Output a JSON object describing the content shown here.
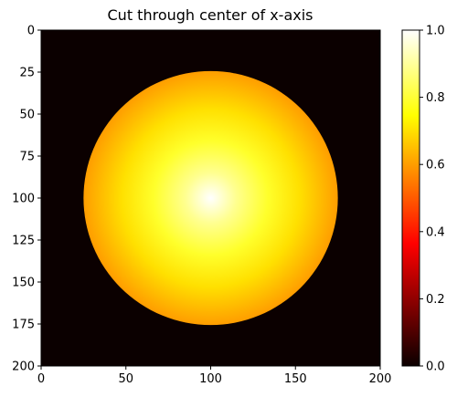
{
  "chart_data": {
    "type": "heatmap",
    "title": "Cut through center of x-axis",
    "xlabel": "",
    "ylabel": "",
    "colormap": "hot",
    "grid": false,
    "image_shape": [
      201,
      201
    ],
    "xlim": [
      0,
      200
    ],
    "ylim": [
      200,
      0
    ],
    "y_axis_inverted": true,
    "x_ticks": [
      0,
      50,
      100,
      150,
      200
    ],
    "x_tick_labels": [
      "0",
      "50",
      "100",
      "150",
      "200"
    ],
    "y_ticks": [
      0,
      25,
      50,
      75,
      100,
      125,
      150,
      175,
      200
    ],
    "y_tick_labels": [
      "0",
      "25",
      "50",
      "75",
      "100",
      "125",
      "150",
      "175",
      "200"
    ],
    "circle": {
      "center": [
        100,
        100
      ],
      "radius": 75,
      "value_at_center": 1.0,
      "value_at_edge": 0.6,
      "profile": "radial falloff from center to edge"
    },
    "background_value": 0.0,
    "colorbar": {
      "range": [
        0.0,
        1.0
      ],
      "ticks": [
        0.0,
        0.2,
        0.4,
        0.6,
        0.8,
        1.0
      ],
      "tick_labels": [
        "0.0",
        "0.2",
        "0.4",
        "0.6",
        "0.8",
        "1.0"
      ],
      "placement": "right"
    }
  },
  "colors": {
    "background": "#0b0000",
    "hot_stops": [
      "#0b0000",
      "#ff0000",
      "#ffff00",
      "#ffffff"
    ]
  }
}
